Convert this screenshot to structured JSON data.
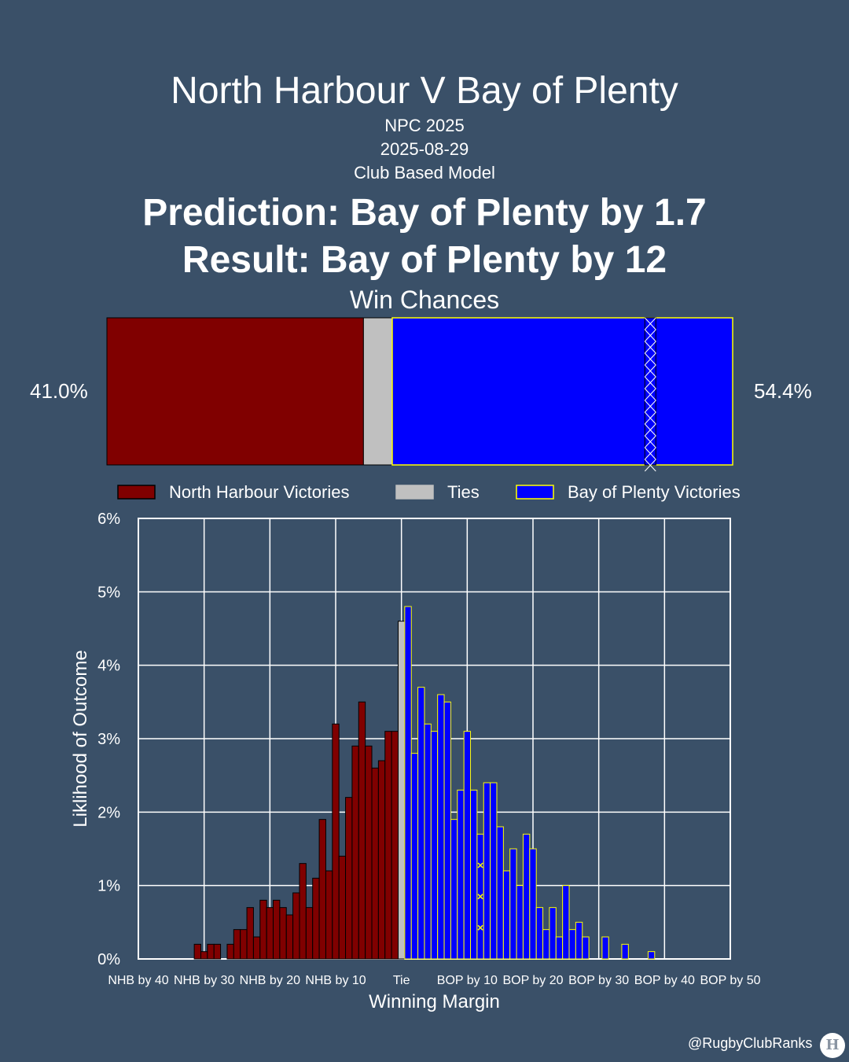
{
  "header": {
    "title": "North Harbour V Bay of Plenty",
    "competition": "NPC 2025",
    "date": "2025-08-29",
    "model": "Club Based Model",
    "prediction": "Prediction: Bay of Plenty by 1.7",
    "result": "Result: Bay of Plenty by 12"
  },
  "win_chances": {
    "title": "Win Chances",
    "home_pct_label": "41.0%",
    "away_pct_label": "54.4%",
    "home": 41.0,
    "tie": 4.6,
    "away": 54.4,
    "result_marker_margin": 12
  },
  "legend": [
    {
      "label": "North Harbour Victories",
      "color": "#800000",
      "edge": "#000000"
    },
    {
      "label": "Ties",
      "color": "#c0c0c0",
      "edge": "#c0c0c0"
    },
    {
      "label": "Bay of Plenty Victories",
      "color": "#0000ff",
      "edge": "#ffff00"
    }
  ],
  "colors": {
    "background": "#3a5068",
    "home": "#800000",
    "tie": "#c0c0c0",
    "away": "#0000ff",
    "away_edge": "#ffff00",
    "result_marker": "#ffff00"
  },
  "chart_data": {
    "type": "bar",
    "xlabel": "Winning Margin",
    "ylabel": "Liklihood of Outcome",
    "xlim": [
      -40,
      50
    ],
    "ylim": [
      0,
      6
    ],
    "grid": true,
    "yticks": [
      0,
      1,
      2,
      3,
      4,
      5,
      6
    ],
    "ytick_labels": [
      "0%",
      "1%",
      "2%",
      "3%",
      "4%",
      "5%",
      "6%"
    ],
    "xticks": [
      -40,
      -30,
      -20,
      -10,
      0,
      10,
      20,
      30,
      40,
      50
    ],
    "xtick_labels": [
      "NHB by 40",
      "NHB by 30",
      "NHB by 20",
      "NHB by 10",
      "Tie",
      "BOP by 10",
      "BOP by 20",
      "BOP by 30",
      "BOP by 40",
      "BOP by 50"
    ],
    "result_margin": 12,
    "series": [
      {
        "name": "North Harbour Victories",
        "x": [
          -31,
          -30,
          -29,
          -28,
          -26,
          -25,
          -24,
          -23,
          -22,
          -21,
          -20,
          -19,
          -18,
          -17,
          -16,
          -15,
          -14,
          -13,
          -12,
          -11,
          -10,
          -9,
          -8,
          -7,
          -6,
          -5,
          -4,
          -3,
          -2,
          -1
        ],
        "values": [
          0.2,
          0.1,
          0.2,
          0.2,
          0.2,
          0.4,
          0.4,
          0.7,
          0.3,
          0.8,
          0.7,
          0.8,
          0.7,
          0.6,
          0.9,
          1.3,
          0.7,
          1.1,
          1.9,
          1.2,
          3.2,
          1.4,
          2.2,
          2.9,
          3.5,
          2.9,
          2.6,
          2.7,
          3.1,
          3.1
        ]
      },
      {
        "name": "Ties",
        "x": [
          0
        ],
        "values": [
          4.6
        ]
      },
      {
        "name": "Bay of Plenty Victories",
        "x": [
          1,
          2,
          3,
          4,
          5,
          6,
          7,
          8,
          9,
          10,
          11,
          12,
          13,
          14,
          15,
          16,
          17,
          18,
          19,
          20,
          21,
          22,
          23,
          24,
          25,
          26,
          27,
          28,
          29,
          31,
          34,
          38
        ],
        "values": [
          4.8,
          2.8,
          3.7,
          3.2,
          3.1,
          3.6,
          3.5,
          1.9,
          2.3,
          3.1,
          2.3,
          1.7,
          2.4,
          2.4,
          1.8,
          1.2,
          1.5,
          1.0,
          1.7,
          1.5,
          0.7,
          0.4,
          0.7,
          0.3,
          1.0,
          0.4,
          0.5,
          0.3,
          0.0,
          0.3,
          0.2,
          0.1
        ]
      }
    ]
  },
  "footer": {
    "handle": "@RugbyClubRanks",
    "logo": "H"
  }
}
